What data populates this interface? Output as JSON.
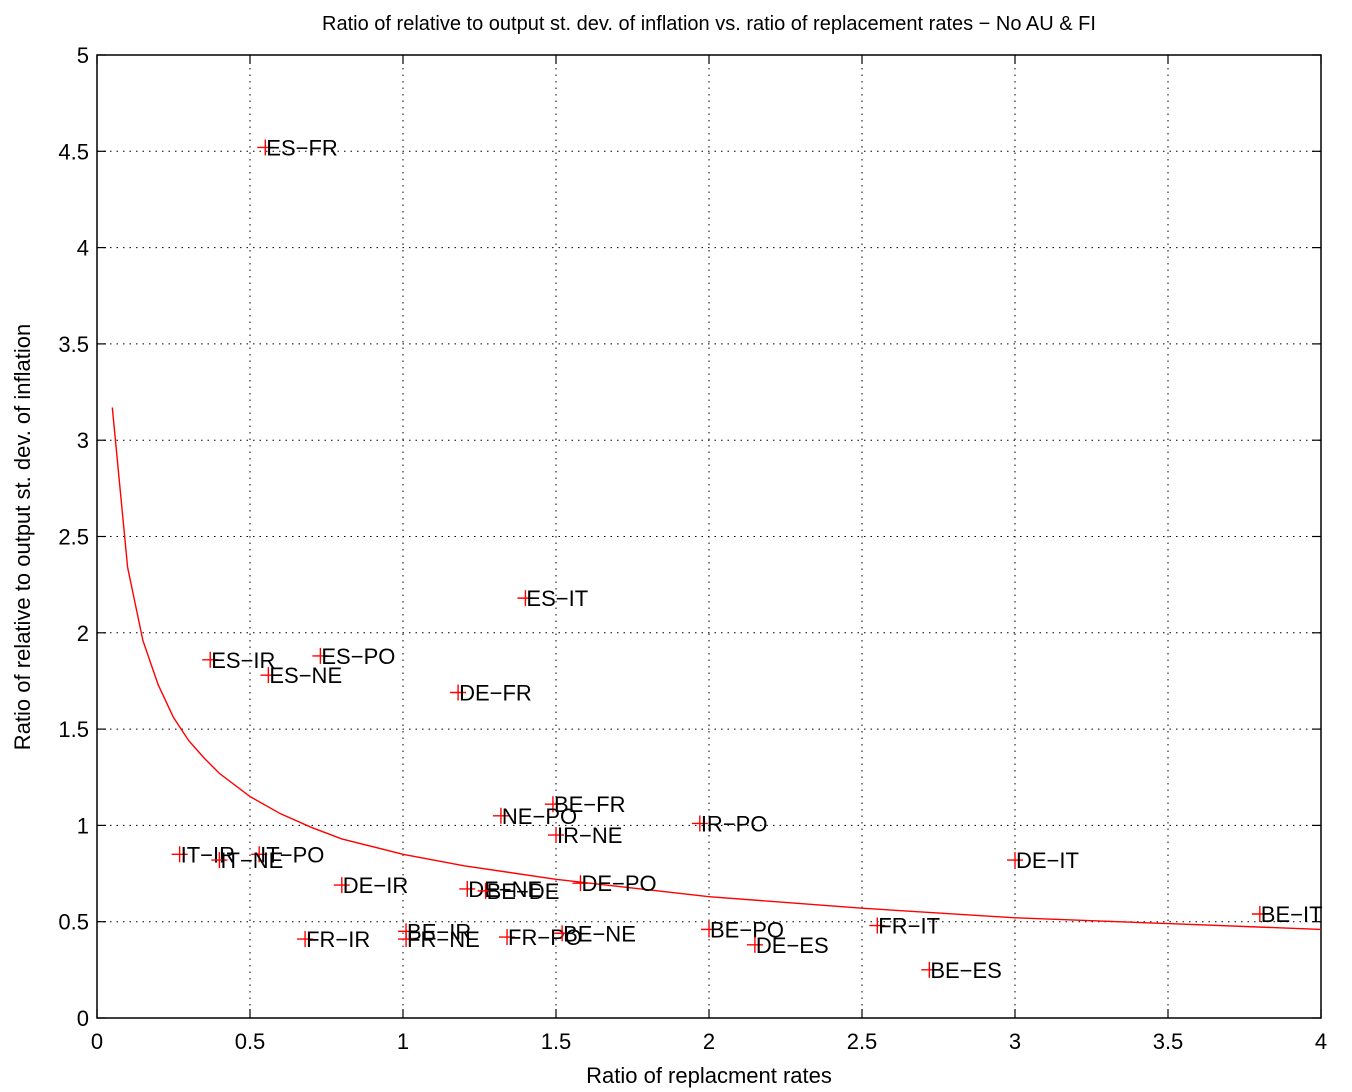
{
  "chart_data": {
    "type": "scatter",
    "title": "Ratio of relative to output st. dev. of inflation vs. ratio of replacement rates − No AU & FI",
    "xlabel": "Ratio of replacment rates",
    "ylabel": "Ratio of relative to output st. dev. of inflation",
    "xlim": [
      0,
      4
    ],
    "ylim": [
      0,
      5
    ],
    "xticks": [
      0,
      0.5,
      1,
      1.5,
      2,
      2.5,
      3,
      3.5,
      4
    ],
    "xtick_labels": [
      "0",
      "0.5",
      "1",
      "1.5",
      "2",
      "2.5",
      "3",
      "3.5",
      "4"
    ],
    "yticks": [
      0,
      0.5,
      1,
      1.5,
      2,
      2.5,
      3,
      3.5,
      4,
      4.5,
      5
    ],
    "ytick_labels": [
      "0",
      "0.5",
      "1",
      "1.5",
      "2",
      "2.5",
      "3",
      "3.5",
      "4",
      "4.5",
      "5"
    ],
    "grid": true,
    "marker": "+",
    "marker_color": "#ff0000",
    "curve_color": "#ff0000",
    "points": [
      {
        "label": "ES−FR",
        "x": 0.55,
        "y": 4.52
      },
      {
        "label": "ES−IT",
        "x": 1.4,
        "y": 2.18
      },
      {
        "label": "ES−IR",
        "x": 0.37,
        "y": 1.86
      },
      {
        "label": "ES−PO",
        "x": 0.73,
        "y": 1.88
      },
      {
        "label": "ES−NE",
        "x": 0.56,
        "y": 1.78
      },
      {
        "label": "DE−FR",
        "x": 1.18,
        "y": 1.69
      },
      {
        "label": "BE−FR",
        "x": 1.49,
        "y": 1.11
      },
      {
        "label": "NE−PO",
        "x": 1.32,
        "y": 1.05
      },
      {
        "label": "IR−NE",
        "x": 1.5,
        "y": 0.95
      },
      {
        "label": "IR−PO",
        "x": 1.97,
        "y": 1.01
      },
      {
        "label": "IT−IR",
        "x": 0.27,
        "y": 0.85
      },
      {
        "label": "IT−PO",
        "x": 0.53,
        "y": 0.85
      },
      {
        "label": "IT−NE",
        "x": 0.4,
        "y": 0.82
      },
      {
        "label": "DE−IR",
        "x": 0.8,
        "y": 0.69
      },
      {
        "label": "DE−NE",
        "x": 1.21,
        "y": 0.67
      },
      {
        "label": "BE−DE",
        "x": 1.27,
        "y": 0.66
      },
      {
        "label": "DE−PO",
        "x": 1.58,
        "y": 0.7
      },
      {
        "label": "DE−IT",
        "x": 3.0,
        "y": 0.82
      },
      {
        "label": "BE−IT",
        "x": 3.8,
        "y": 0.54
      },
      {
        "label": "FR−IT",
        "x": 2.55,
        "y": 0.48
      },
      {
        "label": "BE−IR",
        "x": 1.01,
        "y": 0.45
      },
      {
        "label": "FR−IR",
        "x": 0.68,
        "y": 0.41
      },
      {
        "label": "FR−NE",
        "x": 1.01,
        "y": 0.41
      },
      {
        "label": "FR−PO",
        "x": 1.34,
        "y": 0.42
      },
      {
        "label": "BE−NE",
        "x": 1.52,
        "y": 0.44
      },
      {
        "label": "BE−PO",
        "x": 2.0,
        "y": 0.46
      },
      {
        "label": "DE−ES",
        "x": 2.15,
        "y": 0.38
      },
      {
        "label": "BE−ES",
        "x": 2.72,
        "y": 0.25
      }
    ],
    "fit_curve": {
      "x": [
        0.05,
        0.1,
        0.15,
        0.2,
        0.25,
        0.3,
        0.35,
        0.4,
        0.5,
        0.6,
        0.7,
        0.8,
        1.0,
        1.2,
        1.5,
        2.0,
        2.5,
        3.0,
        3.5,
        4.0
      ],
      "y": [
        3.17,
        2.34,
        1.96,
        1.73,
        1.56,
        1.44,
        1.35,
        1.27,
        1.15,
        1.06,
        0.99,
        0.93,
        0.85,
        0.79,
        0.72,
        0.63,
        0.57,
        0.52,
        0.49,
        0.46
      ]
    }
  }
}
